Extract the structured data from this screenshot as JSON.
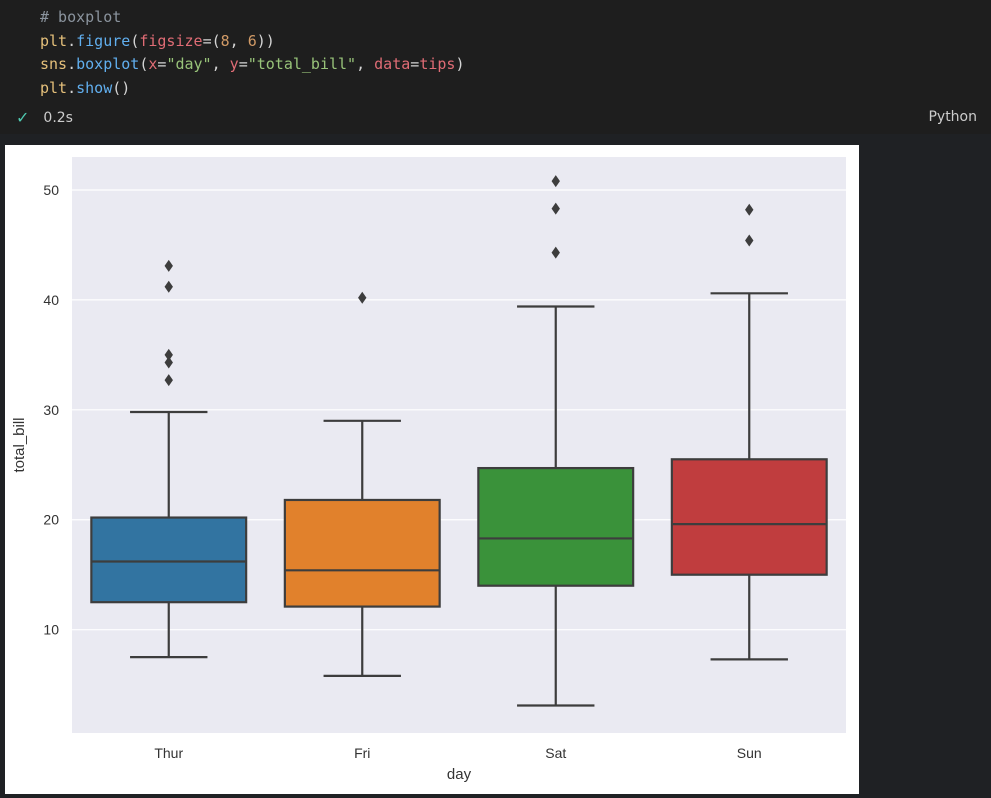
{
  "cell": {
    "code_lines": [
      "# boxplot",
      "plt.figure(figsize=(8, 6))",
      "sns.boxplot(x=\"day\", y=\"total_bill\", data=tips)",
      "plt.show()"
    ],
    "status_time": "0.2s",
    "language": "Python"
  },
  "colors": {
    "editor_bg": "#1e1e1e",
    "plot_bg": "#eaeaf2",
    "success": "#4ec9b0"
  },
  "chart_data": {
    "type": "boxplot",
    "title": "",
    "xlabel": "day",
    "ylabel": "total_bill",
    "ylim": [
      0.6,
      53.0
    ],
    "yticks": [
      10,
      20,
      30,
      40,
      50
    ],
    "grid": true,
    "categories": [
      "Thur",
      "Fri",
      "Sat",
      "Sun"
    ],
    "boxes": [
      {
        "category": "Thur",
        "color": "#3274a1",
        "whisker_low": 7.5,
        "q1": 12.5,
        "median": 16.2,
        "q3": 20.2,
        "whisker_high": 29.8,
        "outliers": [
          32.7,
          34.3,
          35.0,
          41.2,
          43.1
        ]
      },
      {
        "category": "Fri",
        "color": "#e1812c",
        "whisker_low": 5.8,
        "q1": 12.1,
        "median": 15.4,
        "q3": 21.8,
        "whisker_high": 29.0,
        "outliers": [
          40.2
        ]
      },
      {
        "category": "Sat",
        "color": "#3a923a",
        "whisker_low": 3.1,
        "q1": 14.0,
        "median": 18.3,
        "q3": 24.7,
        "whisker_high": 39.4,
        "outliers": [
          44.3,
          48.3,
          50.8
        ]
      },
      {
        "category": "Sun",
        "color": "#c03d3e",
        "whisker_low": 7.3,
        "q1": 15.0,
        "median": 19.6,
        "q3": 25.5,
        "whisker_high": 40.6,
        "outliers": [
          45.4,
          48.2
        ]
      }
    ]
  }
}
